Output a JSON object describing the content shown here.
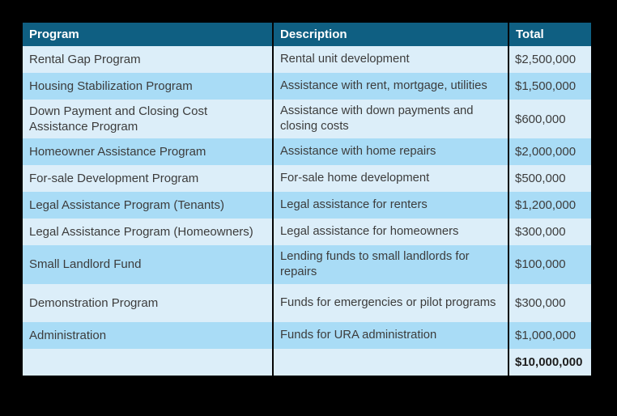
{
  "page": {
    "background_color": "#000000"
  },
  "chart_data": {
    "type": "table",
    "title": "",
    "columns": [
      "Program",
      "Description",
      "Total"
    ],
    "rows": [
      [
        "Rental Gap Program",
        "Rental unit development",
        "$2,500,000"
      ],
      [
        "Housing Stabilization Program",
        "Assistance with rent, mortgage, utilities",
        "$1,500,000"
      ],
      [
        "Down Payment and Closing Cost Assistance Program",
        "Assistance with down payments and closing costs",
        "$600,000"
      ],
      [
        "Homeowner Assistance Program",
        "Assistance with home repairs",
        "$2,000,000"
      ],
      [
        "For-sale Development Program",
        "For-sale home development",
        "$500,000"
      ],
      [
        "Legal Assistance Program (Tenants)",
        "Legal assistance for renters",
        "$1,200,000"
      ],
      [
        "Legal Assistance Program (Homeowners)",
        "Legal assistance for homeowners",
        "$300,000"
      ],
      [
        "Small Landlord Fund",
        "Lending funds to small landlords for repairs",
        "$100,000"
      ],
      [
        "Demonstration Program",
        "Funds for emergencies or pilot programs",
        "$300,000"
      ],
      [
        "Administration",
        "Funds for URA administration",
        "$1,000,000"
      ],
      [
        "",
        "",
        "$10,000,000"
      ]
    ],
    "grand_total": "$10,000,000",
    "layout_hints": {
      "row_striping": "alternating light/medium blue starting with light",
      "totals_row_bold": true,
      "column_dividers": "black vertical lines",
      "header_position": "top"
    },
    "colors": {
      "header_bg": "#0F5F82",
      "header_text": "#FFFFFF",
      "row_light": "#DCEEF9",
      "row_medium": "#A9DCF6",
      "body_text": "#3C3C3C",
      "column_divider": "#050505",
      "canvas_bg": "#000000"
    }
  }
}
